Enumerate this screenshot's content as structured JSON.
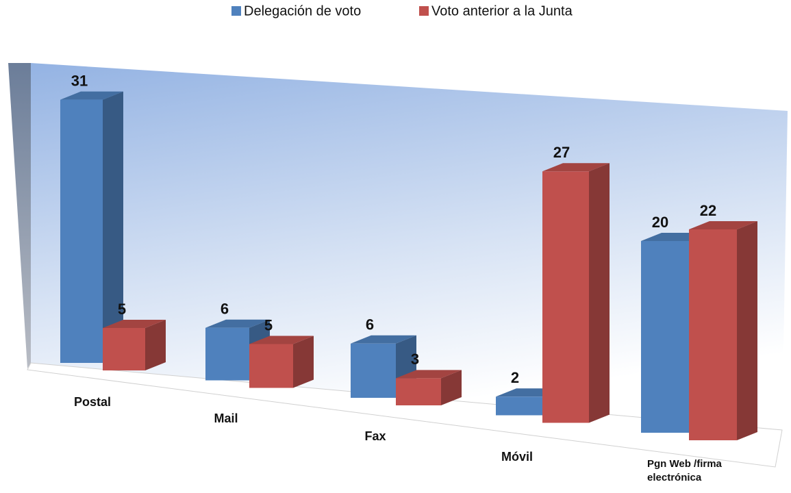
{
  "chart_data": {
    "type": "bar3d",
    "categories": [
      "Postal",
      "Mail",
      "Fax",
      "Móvil",
      "Pgn Web /firma electrónica"
    ],
    "series": [
      {
        "name": "Delegación de voto",
        "color": "#4f81bd",
        "values": [
          31,
          6,
          6,
          2,
          20
        ]
      },
      {
        "name": "Voto anterior a la Junta",
        "color": "#c0504d",
        "values": [
          5,
          5,
          3,
          27,
          22
        ]
      }
    ],
    "legend": "top"
  }
}
